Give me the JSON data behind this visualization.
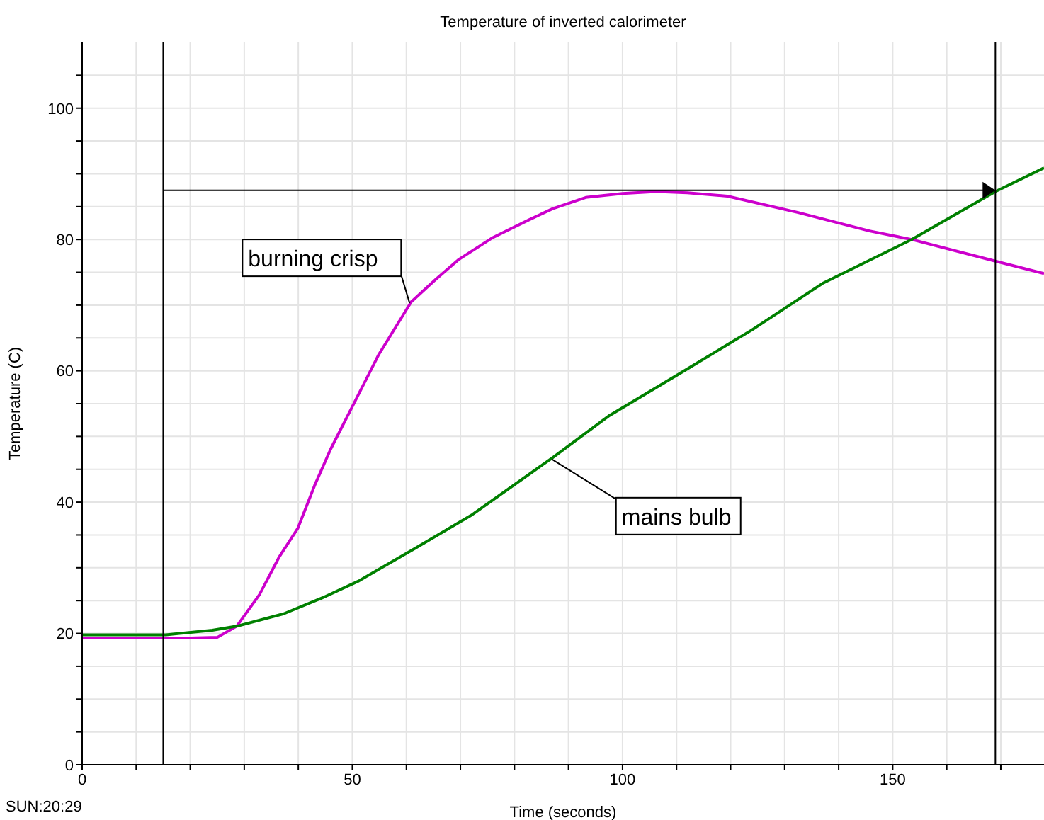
{
  "chart_data": {
    "type": "line",
    "title": "Temperature of inverted calorimeter",
    "xlabel": "Time (seconds)",
    "ylabel": "Temperature (C)",
    "xlim": [
      0,
      178
    ],
    "ylim": [
      0,
      110
    ],
    "xticks": [
      0,
      {
        "value": 10,
        "label": null
      },
      {
        "value": 20,
        "label": null
      },
      {
        "value": 30,
        "label": null
      },
      {
        "value": 40,
        "label": null
      },
      50,
      {
        "value": 60,
        "label": null
      },
      {
        "value": 70,
        "label": null
      },
      {
        "value": 80,
        "label": null
      },
      {
        "value": 90,
        "label": null
      },
      100,
      {
        "value": 110,
        "label": null
      },
      {
        "value": 120,
        "label": null
      },
      {
        "value": 130,
        "label": null
      },
      {
        "value": 140,
        "label": null
      },
      150,
      {
        "value": 160,
        "label": null
      },
      {
        "value": 170,
        "label": null
      }
    ],
    "yticks": [
      0,
      {
        "value": 5,
        "label": null
      },
      {
        "value": 10,
        "label": null
      },
      {
        "value": 15,
        "label": null
      },
      20,
      {
        "value": 25,
        "label": null
      },
      {
        "value": 30,
        "label": null
      },
      {
        "value": 35,
        "label": null
      },
      40,
      {
        "value": 45,
        "label": null
      },
      {
        "value": 50,
        "label": null
      },
      {
        "value": 55,
        "label": null
      },
      60,
      {
        "value": 65,
        "label": null
      },
      {
        "value": 70,
        "label": null
      },
      {
        "value": 75,
        "label": null
      },
      80,
      {
        "value": 85,
        "label": null
      },
      {
        "value": 90,
        "label": null
      },
      {
        "value": 95,
        "label": null
      },
      100,
      {
        "value": 105,
        "label": null
      }
    ],
    "grid": true,
    "legend": false,
    "marker": "none",
    "line_style": "solid",
    "series": [
      {
        "color": "#cc00cc",
        "x": [
          0,
          10,
          20,
          25,
          28.6,
          32.8,
          36.5,
          39.9,
          43,
          46,
          49.6,
          54.9,
          60.9,
          65.4,
          69.6,
          75.8,
          82.7,
          87.1,
          93.2,
          100,
          106.3,
          112,
          119.4,
          132.5,
          145.7,
          153.5,
          169,
          178
        ],
        "values": [
          19.3,
          19.3,
          19.3,
          19.4,
          21.1,
          25.9,
          31.7,
          36,
          42.5,
          48.1,
          53.9,
          62.5,
          70.5,
          73.9,
          76.9,
          80.2,
          83,
          84.7,
          86.4,
          87,
          87.3,
          87.1,
          86.6,
          84.1,
          81.3,
          80,
          76.7,
          74.8
        ]
      },
      {
        "color": "#008000",
        "x": [
          0,
          10,
          15.5,
          24.1,
          28.6,
          37.3,
          44.4,
          51.2,
          61.7,
          72.2,
          87.1,
          97.6,
          110.8,
          123.9,
          137,
          153.5,
          169,
          178
        ],
        "values": [
          19.8,
          19.8,
          19.8,
          20.5,
          21.1,
          23,
          25.4,
          28,
          33,
          38.1,
          46.8,
          53.2,
          59.7,
          66.2,
          73.3,
          80,
          87.3,
          90.9
        ]
      }
    ],
    "ref_lines": [
      {
        "axis": "x",
        "value": 15,
        "color": "#000000"
      },
      {
        "axis": "x",
        "value": 169,
        "color": "#000000"
      },
      {
        "axis": "y",
        "value": 87.5,
        "color": "#000000"
      }
    ],
    "annotations": [
      {
        "text": "burning crisp",
        "x": 60.6,
        "y": 70.3
      },
      {
        "text": "mains bulb",
        "x": 87,
        "y": 46.5
      },
      "SUN:20:29"
    ]
  }
}
